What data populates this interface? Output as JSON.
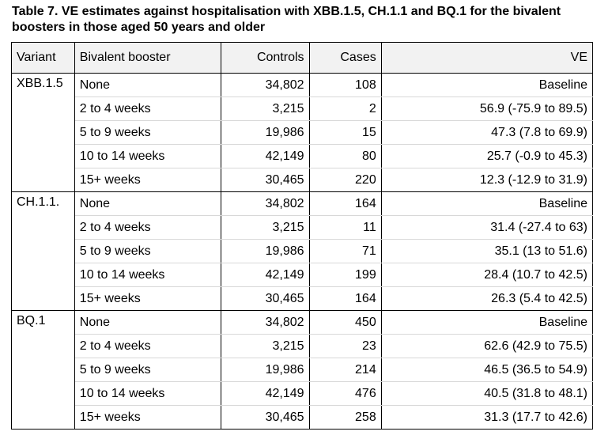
{
  "caption": "Table 7. VE estimates against hospitalisation with XBB.1.5, CH.1.1 and BQ.1 for the bivalent boosters in those aged 50 years and older",
  "table": {
    "headers": {
      "variant": "Variant",
      "booster": "Bivalent booster",
      "controls": "Controls",
      "cases": "Cases",
      "ve": "VE"
    },
    "groups": [
      {
        "variant": "XBB.1.5",
        "rows": [
          {
            "booster": "None",
            "controls": "34,802",
            "cases": "108",
            "ve": "Baseline"
          },
          {
            "booster": "2 to 4 weeks",
            "controls": "3,215",
            "cases": "2",
            "ve": "56.9 (-75.9 to 89.5)"
          },
          {
            "booster": "5 to 9 weeks",
            "controls": "19,986",
            "cases": "15",
            "ve": "47.3 (7.8 to 69.9)"
          },
          {
            "booster": "10 to 14 weeks",
            "controls": "42,149",
            "cases": "80",
            "ve": "25.7 (-0.9 to 45.3)"
          },
          {
            "booster": "15+ weeks",
            "controls": "30,465",
            "cases": "220",
            "ve": "12.3 (-12.9 to 31.9)"
          }
        ]
      },
      {
        "variant": "CH.1.1.",
        "rows": [
          {
            "booster": "None",
            "controls": "34,802",
            "cases": "164",
            "ve": "Baseline"
          },
          {
            "booster": "2 to 4 weeks",
            "controls": "3,215",
            "cases": "11",
            "ve": "31.4 (-27.4 to 63)"
          },
          {
            "booster": "5 to 9 weeks",
            "controls": "19,986",
            "cases": "71",
            "ve": "35.1 (13 to 51.6)"
          },
          {
            "booster": "10 to 14 weeks",
            "controls": "42,149",
            "cases": "199",
            "ve": "28.4 (10.7 to 42.5)"
          },
          {
            "booster": "15+ weeks",
            "controls": "30,465",
            "cases": "164",
            "ve": "26.3 (5.4 to 42.5)"
          }
        ]
      },
      {
        "variant": "BQ.1",
        "rows": [
          {
            "booster": "None",
            "controls": "34,802",
            "cases": "450",
            "ve": "Baseline"
          },
          {
            "booster": "2 to 4 weeks",
            "controls": "3,215",
            "cases": "23",
            "ve": "62.6 (42.9 to 75.5)"
          },
          {
            "booster": "5 to 9 weeks",
            "controls": "19,986",
            "cases": "214",
            "ve": "46.5 (36.5 to 54.9)"
          },
          {
            "booster": "10 to 14 weeks",
            "controls": "42,149",
            "cases": "476",
            "ve": "40.5 (31.8 to 48.1)"
          },
          {
            "booster": "15+ weeks",
            "controls": "30,465",
            "cases": "258",
            "ve": "31.3 (17.7 to 42.6)"
          }
        ]
      }
    ]
  },
  "colors": {
    "header_background": "#f2f2f2",
    "border": "#000000",
    "row_separator": "#d8d8d8"
  }
}
